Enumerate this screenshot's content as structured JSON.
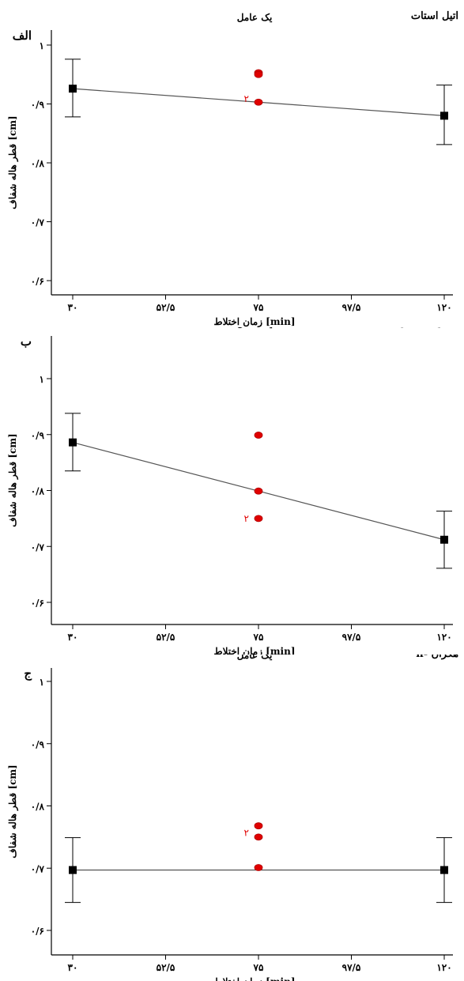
{
  "chart_data": [
    {
      "type": "line",
      "panel_label": "الف",
      "title": "یک عامل",
      "subtitle": "اتیل استات",
      "xlabel": "زمان اختلاط [min]",
      "ylabel": "قطر هاله شفاف [cm]",
      "xlim": [
        28,
        122
      ],
      "ylim": [
        0.58,
        1.01
      ],
      "x_ticks": [
        30,
        52.5,
        75,
        97.5,
        120
      ],
      "x_tick_labels": [
        "۳۰",
        "۵۲/۵",
        "۷۵",
        "۹۷/۵",
        "۱۲۰"
      ],
      "y_ticks": [
        0.6,
        0.7,
        0.8,
        0.9,
        1.0
      ],
      "y_tick_labels": [
        "۰/۶",
        "۰/۷",
        "۰/۸",
        "۰/۹",
        "۱"
      ],
      "grid": false,
      "fit_line": {
        "x": [
          30,
          75,
          120
        ],
        "y": [
          0.926,
          0.903,
          0.88
        ]
      },
      "mean_markers": [
        {
          "x": 30,
          "y": 0.926,
          "err_low": 0.878,
          "err_high": 0.976
        },
        {
          "x": 120,
          "y": 0.88,
          "err_low": 0.831,
          "err_high": 0.932
        }
      ],
      "observed_points": [
        {
          "x": 75,
          "y": 0.953
        },
        {
          "x": 75,
          "y": 0.95
        },
        {
          "x": 75,
          "y": 0.903
        }
      ],
      "replicate_label": {
        "x": 75,
        "y": 0.909,
        "text": "۲"
      }
    },
    {
      "type": "line",
      "panel_label": "ب",
      "title": "یک عامل",
      "subtitle": "متیلن دی کلرید",
      "xlabel": "زمان اختلاط [min]",
      "ylabel": "قطر هاله شفاف [cm]",
      "xlim": [
        28,
        122
      ],
      "ylim": [
        0.58,
        1.01
      ],
      "x_ticks": [
        30,
        52.5,
        75,
        97.5,
        120
      ],
      "x_tick_labels": [
        "۳۰",
        "۵۲/۵",
        "۷۵",
        "۹۷/۵",
        "۱۲۰"
      ],
      "y_ticks": [
        0.6,
        0.7,
        0.8,
        0.9,
        1.0
      ],
      "y_tick_labels": [
        "۰/۶",
        "۰/۷",
        "۰/۸",
        "۰/۹",
        "۱"
      ],
      "grid": false,
      "fit_line": {
        "x": [
          30,
          75,
          120
        ],
        "y": [
          0.886,
          0.799,
          0.712
        ]
      },
      "mean_markers": [
        {
          "x": 30,
          "y": 0.886,
          "err_low": 0.835,
          "err_high": 0.938
        },
        {
          "x": 120,
          "y": 0.712,
          "err_low": 0.661,
          "err_high": 0.763
        }
      ],
      "observed_points": [
        {
          "x": 75,
          "y": 0.899
        },
        {
          "x": 75,
          "y": 0.799
        },
        {
          "x": 75,
          "y": 0.75
        }
      ],
      "replicate_label": {
        "x": 75,
        "y": 0.75,
        "text": "۲"
      }
    },
    {
      "type": "line",
      "panel_label": "ج",
      "title": "یک عامل",
      "subtitle": "n- هگزان",
      "xlabel": "زمان اختلاط [min]",
      "ylabel": "قطر هاله شفاف [cm]",
      "xlim": [
        28,
        122
      ],
      "ylim": [
        0.58,
        1.01
      ],
      "x_ticks": [
        30,
        52.5,
        75,
        97.5,
        120
      ],
      "x_tick_labels": [
        "۳۰",
        "۵۲/۵",
        "۷۵",
        "۹۷/۵",
        "۱۲۰"
      ],
      "y_ticks": [
        0.6,
        0.7,
        0.8,
        0.9,
        1.0
      ],
      "y_tick_labels": [
        "۰/۶",
        "۰/۷",
        "۰/۸",
        "۰/۹",
        "۱"
      ],
      "grid": false,
      "fit_line": {
        "x": [
          30,
          75,
          120
        ],
        "y": [
          0.697,
          0.697,
          0.697
        ]
      },
      "mean_markers": [
        {
          "x": 30,
          "y": 0.697,
          "err_low": 0.645,
          "err_high": 0.749
        },
        {
          "x": 120,
          "y": 0.697,
          "err_low": 0.645,
          "err_high": 0.749
        }
      ],
      "observed_points": [
        {
          "x": 75,
          "y": 0.768
        },
        {
          "x": 75,
          "y": 0.75
        },
        {
          "x": 75,
          "y": 0.701
        }
      ],
      "replicate_label": {
        "x": 75,
        "y": 0.757,
        "text": "۲"
      }
    }
  ]
}
